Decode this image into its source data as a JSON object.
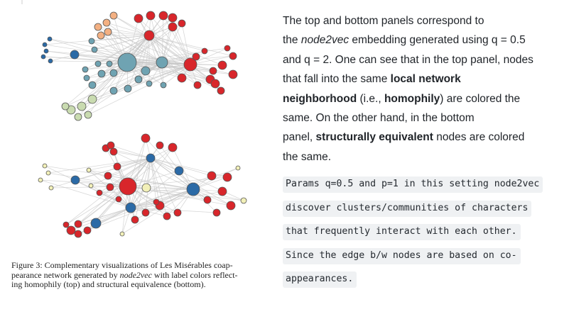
{
  "figure": {
    "caption_label": "Figure 3:",
    "caption_text_1": "Complementary visualizations of Les Misérables coap-",
    "caption_text_2a": "pearance network generated by ",
    "caption_text_2b": "node2vec",
    "caption_text_2c": " with label colors reflect-",
    "caption_text_3": "ing homophily (top) and structural equivalence (bottom)."
  },
  "explanation": {
    "l1": "The top and bottom panels correspond to",
    "l2a": "the ",
    "l2b": "node2vec",
    "l2c": " embedding generated using q = 0.5",
    "l3": "and q = 2. One can see that in the top panel, nodes",
    "l4a": "that fall into the same ",
    "l4b": "local network",
    "l5a": "neighborhood",
    "l5b": " (i.e., ",
    "l5c": "homophily",
    "l5d": ") are colored the",
    "l6": "same. On the other hand, in the bottom",
    "l7a": "panel, ",
    "l7b": "structurally equivalent",
    "l7c": " nodes are colored",
    "l8": "the same."
  },
  "code_note": {
    "lines": [
      "Params q=0.5 and p=1 in this setting node2vec",
      "discover clusters/communities of characters",
      "that frequently interact with each other.",
      "Since the edge b/w nodes are based on co-",
      "appearances."
    ]
  },
  "colors": {
    "red": "#d8262b",
    "teal": "#6fa3b2",
    "blue": "#2b6aa6",
    "orange": "#f3b082",
    "green": "#c9dbb0",
    "yellow": "#f2f0b8",
    "edge": "#c8c8c8"
  }
}
